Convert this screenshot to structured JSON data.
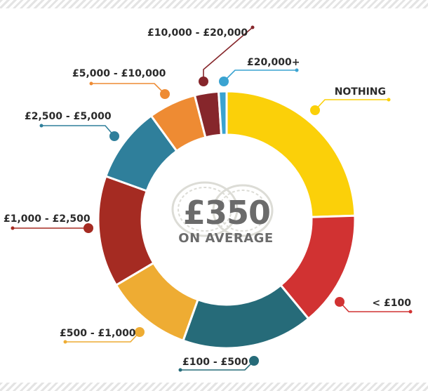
{
  "chart_data": {
    "type": "donut",
    "title": "",
    "center_value": "£350",
    "center_subtitle": "ON AVERAGE",
    "slices": [
      {
        "label": "NOTHING",
        "value": 24.5,
        "color": "#fbd009"
      },
      {
        "label": "< £100",
        "value": 14.5,
        "color": "#d13232"
      },
      {
        "label": "£100 - £500",
        "value": 16.5,
        "color": "#266b79"
      },
      {
        "label": "£500 - £1,000",
        "value": 11.0,
        "color": "#eeac33"
      },
      {
        "label": "£1,000 - £2,500",
        "value": 14.0,
        "color": "#a52b22"
      },
      {
        "label": "£2,500 - £5,000",
        "value": 9.5,
        "color": "#2f7f9b"
      },
      {
        "label": "£5,000 - £10,000",
        "value": 6.0,
        "color": "#ee8b33"
      },
      {
        "label": "£10,000 - £20,000",
        "value": 3.0,
        "color": "#86262b"
      },
      {
        "label": "£20,000+",
        "value": 1.0,
        "color": "#3aa3d1"
      }
    ]
  }
}
